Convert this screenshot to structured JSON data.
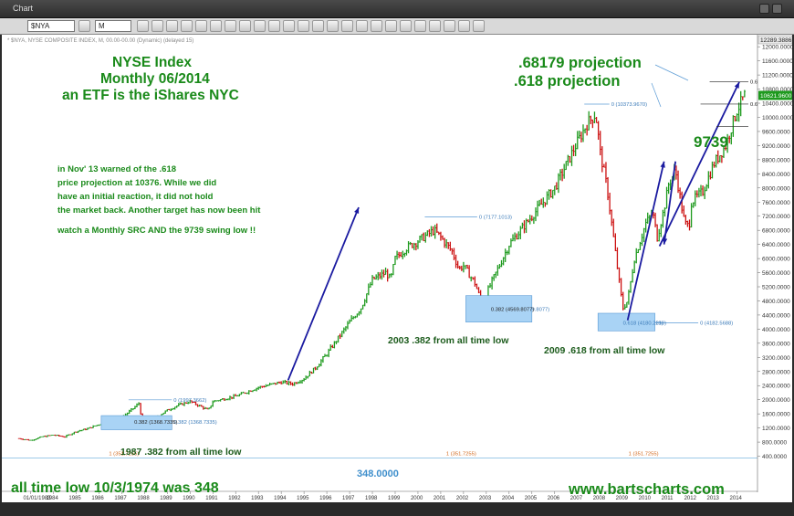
{
  "window": {
    "title": "Chart"
  },
  "toolbar": {
    "symbol": "$NYA",
    "period": "M"
  },
  "chart_header": "* $NYA, NYSE COMPOSITE INDEX, M, 00.00-00.00 (Dynamic) (delayed 15)",
  "colors": {
    "up": "#1e9a1e",
    "down": "#cc1111",
    "arrow": "#1a1aa0",
    "fib": "#5b9bd5",
    "box": "#a9d3f5",
    "annotation": "#1a8a1a"
  },
  "annotations": {
    "title_line1": "NYSE Index",
    "title_line2": "Monthly 06/2014",
    "title_line3": "an ETF is the iShares NYC",
    "note_line1": "in Nov' 13 warned of the .618",
    "note_line2": "price projection at 10376.  While we did",
    "note_line3": "have an initial reaction, it did not hold",
    "note_line4": "the market back.  Another target has now been hit",
    "note_line5": "watch a Monthly SRC AND the 9739 swing low !!",
    "proj1": ".68179 projection",
    "proj2": ".618 projection",
    "swing": "9739",
    "label_1987": "1987 .382 from all time low",
    "label_2003": "2003 .382 from all time low",
    "label_2009": "2009 .618 from all time low",
    "atl": "all time low 10/3/1974 was 348",
    "atl_value": "348.0000",
    "website": "www.bartscharts.com"
  },
  "chart_data": {
    "type": "line",
    "title": "",
    "xlabel": "",
    "ylabel": "",
    "x_ticks": [
      "1983",
      "1984",
      "1985",
      "1986",
      "1987",
      "1988",
      "1989",
      "1990",
      "1991",
      "1992",
      "1993",
      "1994",
      "1995",
      "1996",
      "1997",
      "1998",
      "1999",
      "2000",
      "2001",
      "2002",
      "2003",
      "2004",
      "2005",
      "2006",
      "2007",
      "2008",
      "2009",
      "2010",
      "2011",
      "2012",
      "2013",
      "2014"
    ],
    "x_start_label": "01/01/1983",
    "ylim": [
      0,
      12289.3886
    ],
    "y_ticks": [
      400,
      800,
      1200,
      1600,
      2000,
      2400,
      2800,
      3200,
      3600,
      4000,
      4400,
      4800,
      5200,
      5600,
      6000,
      6400,
      6800,
      7200,
      7600,
      8000,
      8400,
      8800,
      9200,
      9600,
      10000,
      10400,
      10800,
      11200,
      11600,
      12000
    ],
    "y_max_label": "12289.3886",
    "last_price": "10621.9600",
    "grid": false,
    "series": [
      {
        "x": [
          1982.5,
          1983,
          1983.5,
          1984,
          1984.5,
          1985,
          1985.5,
          1986,
          1986.5,
          1987,
          1987.5,
          1987.75,
          1987.9,
          1988.5,
          1989,
          1989.5,
          1990,
          1990.5,
          1990.8,
          1991,
          1992,
          1993,
          1994,
          1994.5,
          1995,
          1995.5,
          1996,
          1997,
          1997.5,
          1998,
          1998.6,
          1998.8,
          1999,
          1999.5,
          2000,
          2000.7,
          2001,
          2001.5,
          2001.8,
          2002,
          2002.5,
          2002.8,
          2003,
          2003.5,
          2004,
          2005,
          2006,
          2007,
          2007.4,
          2007.8,
          2008,
          2008.3,
          2008.6,
          2008.9,
          2009,
          2009.2,
          2009.5,
          2010,
          2010.3,
          2010.5,
          2010.8,
          2011,
          2011.3,
          2011.7,
          2011.9,
          2012,
          2012.5,
          2013,
          2013.5,
          2014,
          2014.4
        ],
        "values": [
          900,
          850,
          950,
          1000,
          950,
          1100,
          1180,
          1300,
          1400,
          1500,
          1750,
          1900,
          1400,
          1500,
          1700,
          1850,
          1950,
          1800,
          1700,
          1950,
          2100,
          2350,
          2500,
          2450,
          2600,
          2900,
          3300,
          4200,
          4600,
          5400,
          5600,
          5400,
          6000,
          6300,
          6500,
          6800,
          6600,
          6200,
          5700,
          5800,
          5300,
          4750,
          5000,
          5700,
          6400,
          7200,
          8000,
          9300,
          9800,
          10100,
          9000,
          8000,
          6500,
          5000,
          4600,
          4800,
          6000,
          7000,
          7300,
          6600,
          7400,
          8100,
          8500,
          7000,
          6900,
          7600,
          7900,
          8700,
          9200,
          10200,
          10700
        ]
      }
    ],
    "fib_levels": [
      {
        "label": "0 (1997.3662)"
      },
      {
        "label": "0.382 (1368.7335)"
      },
      {
        "label": "0 (7177.1013)"
      },
      {
        "label": "0.382 (4569.8077)"
      },
      {
        "label": "0 (10373.9670)"
      },
      {
        "label": "0.618 (4180.2218)"
      },
      {
        "label": "0 (4182.5688)"
      },
      {
        "label": "0.681 (11007.7153)"
      },
      {
        "label": "0.618 (10376.3141)"
      },
      {
        "label": "1 (351.7255)"
      }
    ]
  }
}
